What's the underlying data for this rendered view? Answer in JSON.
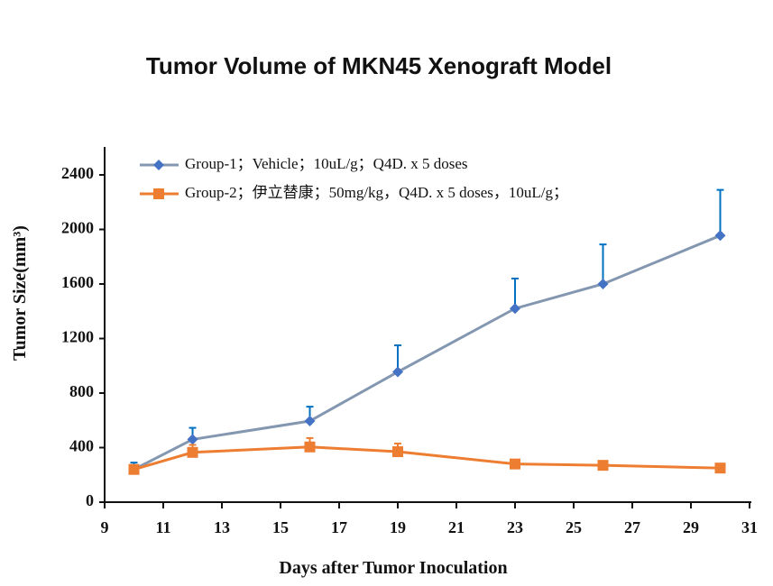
{
  "chart_data": {
    "type": "line",
    "title": "Tumor Volume of MKN45 Xenograft Model",
    "x_label": "Days after Tumor Inoculation",
    "y_label": "Tumor Size(mm³)",
    "x": [
      10,
      12,
      16,
      19,
      23,
      26,
      30
    ],
    "series": [
      {
        "name": "Group-1；Vehicle；10uL/g；Q4D. x 5 doses",
        "color": "#4472c4",
        "line_color": "#8497b0",
        "error_color": "#0070c0",
        "marker": "diamond",
        "values": [
          240,
          460,
          595,
          955,
          1420,
          1600,
          1955
        ],
        "errors": [
          50,
          85,
          105,
          195,
          220,
          290,
          335
        ]
      },
      {
        "name": "Group-2；伊立替康；50mg/kg，Q4D. x 5 doses，10uL/g；",
        "color": "#ed7d31",
        "line_color": "#ed7d31",
        "error_color": "#ed7d31",
        "marker": "square",
        "values": [
          240,
          365,
          405,
          370,
          280,
          270,
          250
        ],
        "errors": [
          20,
          55,
          65,
          60,
          15,
          15,
          15
        ]
      }
    ],
    "xlim": [
      9,
      31
    ],
    "xticks": [
      9,
      11,
      13,
      15,
      17,
      19,
      21,
      23,
      25,
      27,
      29,
      31
    ],
    "ylim": [
      0,
      2600
    ],
    "yticks": [
      0,
      400,
      800,
      1200,
      1600,
      2000,
      2400
    ],
    "legend": "upper left"
  }
}
